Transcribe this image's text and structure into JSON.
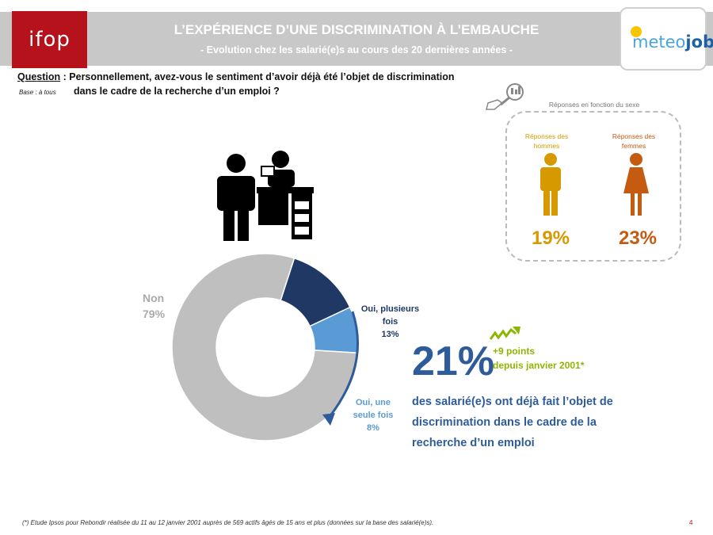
{
  "header": {
    "brand": "ifop",
    "title": "L’EXPÉRIENCE D’UNE DISCRIMINATION À L’EMBAUCHE",
    "subtitle": "- Evolution chez les salarié(e)s au cours des 20 dernières années -",
    "partner_logo": {
      "part1": "meteo",
      "part2": "job"
    }
  },
  "question": {
    "label": "Question",
    "line1": " : Personnellement, avez-vous le sentiment d’avoir déjà été l’objet de discrimination",
    "line2": "dans le cadre de la recherche d’un emploi ?",
    "base": "Base : à tous"
  },
  "sex_breakdown": {
    "title": "Réponses en fonction du sexe",
    "men_label": "Réponses des hommes",
    "women_label": "Réponses des femmes",
    "men_value": "19%",
    "women_value": "23%",
    "men_color": "#d69a00",
    "women_color": "#c55a11"
  },
  "chart_data": {
    "type": "pie",
    "subtype": "donut",
    "slices": [
      {
        "label": "Oui, plusieurs fois",
        "value": 13,
        "display": "13%",
        "color": "#1f3864"
      },
      {
        "label": "Oui, une seule fois",
        "value": 8,
        "display": "8%",
        "color": "#5b9bd5"
      },
      {
        "label": "Non",
        "value": 79,
        "display": "79%",
        "color": "#bfbfbf"
      }
    ]
  },
  "labels": {
    "non_name": "Non",
    "non_value": "79%",
    "plusieurs_l1": "Oui, plusieurs",
    "plusieurs_l2": "fois",
    "plusieurs_value": "13%",
    "une_l1": "Oui, une",
    "une_l2": "seule fois",
    "une_value": "8%"
  },
  "highlight": {
    "value": "21%",
    "evolution_l1": "+9 points",
    "evolution_l2": "depuis janvier 2001*",
    "text": "des salarié(e)s ont déjà fait l’objet de discrimination dans le cadre de la recherche d’un emploi"
  },
  "icons": [
    "interview-scene-icon",
    "magnifier-icon",
    "man-icon",
    "woman-icon",
    "trend-up-icon",
    "curved-arrow-icon"
  ],
  "footnote": "(*) Etude Ipsos pour Rebondir réalisée du 11 au 12 janvier 2001 auprès de 569 actifs âgés de 15 ans et plus (données sur la base des salarié(e)s).",
  "page_number": "4"
}
